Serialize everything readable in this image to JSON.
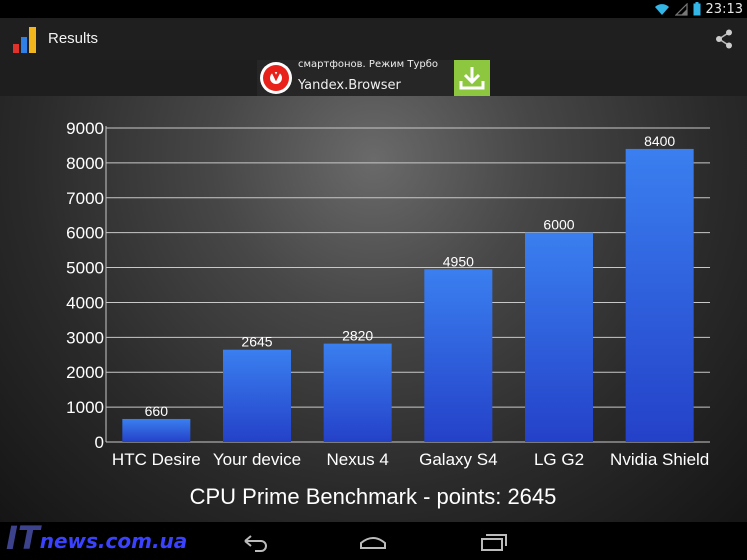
{
  "status_bar": {
    "time": "23:13"
  },
  "action_bar": {
    "title": "Results"
  },
  "ad": {
    "line1": "смартфонов. Режим Турбо",
    "line2": "Yandex.Browser"
  },
  "watermark": {
    "it": "IT",
    "news": "news.com.ua"
  },
  "colors": {
    "bar_top": "#3a7ff0",
    "bar_bottom": "#2441c8",
    "ad_download": "#8dc63f"
  },
  "chart_data": {
    "type": "bar",
    "title": "CPU Prime Benchmark - points: 2645",
    "categories": [
      "HTC Desire",
      "Your device",
      "Nexus 4",
      "Galaxy S4",
      "LG G2",
      "Nvidia Shield"
    ],
    "values": [
      660,
      2645,
      2820,
      4950,
      6000,
      8400
    ],
    "data_labels": [
      "660",
      "2645",
      "2820",
      "4950",
      "6000",
      "8400"
    ],
    "yticks": [
      0,
      1000,
      2000,
      3000,
      4000,
      5000,
      6000,
      7000,
      8000,
      9000
    ],
    "ylim": [
      0,
      9000
    ],
    "xlabel": "",
    "ylabel": "",
    "grid": true
  }
}
